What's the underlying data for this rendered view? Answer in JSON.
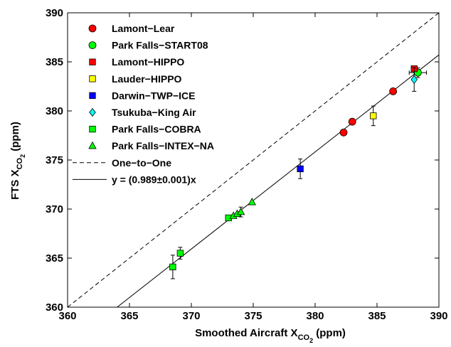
{
  "chart_data": {
    "type": "scatter",
    "xlabel": "Smoothed Aircraft X",
    "xlabel_sub": "CO",
    "xlabel_sub2": "2",
    "xlabel_unit": " (ppm)",
    "ylabel": "FTS X",
    "ylabel_sub": "CO",
    "ylabel_sub2": "2",
    "ylabel_unit": "  (ppm)",
    "xlim": [
      360,
      390
    ],
    "ylim": [
      360,
      390
    ],
    "xticks": [
      360,
      365,
      370,
      375,
      380,
      385,
      390
    ],
    "yticks": [
      360,
      365,
      370,
      375,
      380,
      385,
      390
    ],
    "xtick_labels": [
      "360",
      "365",
      "370",
      "375",
      "380",
      "385",
      "390"
    ],
    "ytick_labels": [
      "360",
      "365",
      "370",
      "375",
      "380",
      "385",
      "390"
    ],
    "grid": false,
    "legend_position": "top-left",
    "series": [
      {
        "name": "Lamont−Lear",
        "marker": "circle",
        "color": "#ff0000",
        "points": [
          [
            382.3,
            377.8,
            0,
            0
          ],
          [
            383.0,
            378.9,
            0,
            0
          ],
          [
            386.3,
            382.0,
            0,
            0
          ]
        ]
      },
      {
        "name": "Park Falls−START08",
        "marker": "circle",
        "color": "#00ff00",
        "points": [
          [
            388.3,
            383.9,
            0.7,
            0.5
          ]
        ]
      },
      {
        "name": "Lamont−HIPPO",
        "marker": "square",
        "color": "#ff0000",
        "points": [
          [
            388.0,
            384.3,
            0,
            0
          ]
        ]
      },
      {
        "name": "Lauder−HIPPO",
        "marker": "square",
        "color": "#ffff00",
        "points": [
          [
            384.7,
            379.5,
            0,
            1.0
          ]
        ]
      },
      {
        "name": "Darwin−TWP−ICE",
        "marker": "square",
        "color": "#0000ff",
        "points": [
          [
            378.8,
            374.1,
            0,
            1.0
          ]
        ]
      },
      {
        "name": "Tsukuba−King Air",
        "marker": "diamond",
        "color": "#00ffff",
        "points": [
          [
            388.0,
            383.2,
            0,
            1.2
          ]
        ]
      },
      {
        "name": "Park Falls−COBRA",
        "marker": "square",
        "color": "#00ff00",
        "points": [
          [
            368.5,
            364.1,
            0,
            1.2
          ],
          [
            369.1,
            365.5,
            0,
            0.6
          ],
          [
            373.0,
            369.1,
            0,
            0
          ]
        ]
      },
      {
        "name": "Park Falls−INTEX−NA",
        "marker": "triangle",
        "color": "#00ff00",
        "points": [
          [
            373.4,
            369.3,
            0,
            0
          ],
          [
            373.7,
            369.5,
            0,
            0
          ],
          [
            374.0,
            369.7,
            0,
            0.5
          ],
          [
            374.9,
            370.7,
            0,
            0
          ]
        ]
      }
    ],
    "lines": [
      {
        "name": "One−to−One",
        "style": "dashed",
        "slope": 1.0
      },
      {
        "name": "y = (0.989±0.001)x",
        "style": "solid",
        "slope": 0.989
      }
    ]
  }
}
